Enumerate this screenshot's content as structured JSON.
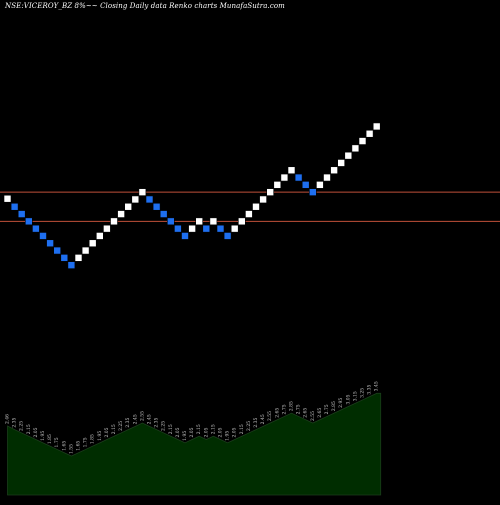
{
  "header": {
    "title": "NSE:VICEROY_BZ 8%~~ Closing Daily data  Renko  charts MunafaSutra.com"
  },
  "colors": {
    "background": "#000000",
    "up_brick": "#ffffff",
    "down_brick": "#1e6ff0",
    "brick_outline": "#000000",
    "level_line": "#c0503a",
    "volume_fill": "#002d00",
    "volume_stroke": "#1b3d1b",
    "value_label": "#cccccc"
  },
  "chart_data": {
    "type": "renko",
    "title": "NSE:VICEROY_BZ 8%~~ Closing Daily data  Renko  charts MunafaSutra.com",
    "brick_size_percent": 8,
    "ylim": [
      1.4,
      3.05
    ],
    "horizontal_lines": [
      2.55,
      2.15
    ],
    "bricks": [
      {
        "dir": "up",
        "value": 2.46
      },
      {
        "dir": "down",
        "value": 2.35
      },
      {
        "dir": "down",
        "value": 2.25
      },
      {
        "dir": "down",
        "value": 2.15
      },
      {
        "dir": "down",
        "value": 2.05
      },
      {
        "dir": "down",
        "value": 1.95
      },
      {
        "dir": "down",
        "value": 1.85
      },
      {
        "dir": "down",
        "value": 1.75
      },
      {
        "dir": "down",
        "value": 1.65
      },
      {
        "dir": "down",
        "value": 1.55
      },
      {
        "dir": "up",
        "value": 1.65
      },
      {
        "dir": "up",
        "value": 1.75
      },
      {
        "dir": "up",
        "value": 1.85
      },
      {
        "dir": "up",
        "value": 1.95
      },
      {
        "dir": "up",
        "value": 2.05
      },
      {
        "dir": "up",
        "value": 2.15
      },
      {
        "dir": "up",
        "value": 2.25
      },
      {
        "dir": "up",
        "value": 2.35
      },
      {
        "dir": "up",
        "value": 2.45
      },
      {
        "dir": "up",
        "value": 2.55
      },
      {
        "dir": "down",
        "value": 2.45
      },
      {
        "dir": "down",
        "value": 2.35
      },
      {
        "dir": "down",
        "value": 2.25
      },
      {
        "dir": "down",
        "value": 2.15
      },
      {
        "dir": "down",
        "value": 2.05
      },
      {
        "dir": "down",
        "value": 1.95
      },
      {
        "dir": "up",
        "value": 2.05
      },
      {
        "dir": "up",
        "value": 2.15
      },
      {
        "dir": "down",
        "value": 2.05
      },
      {
        "dir": "up",
        "value": 2.15
      },
      {
        "dir": "down",
        "value": 2.05
      },
      {
        "dir": "down",
        "value": 1.95
      },
      {
        "dir": "up",
        "value": 2.05
      },
      {
        "dir": "up",
        "value": 2.15
      },
      {
        "dir": "up",
        "value": 2.25
      },
      {
        "dir": "up",
        "value": 2.35
      },
      {
        "dir": "up",
        "value": 2.45
      },
      {
        "dir": "up",
        "value": 2.55
      },
      {
        "dir": "up",
        "value": 2.65
      },
      {
        "dir": "up",
        "value": 2.75
      },
      {
        "dir": "up",
        "value": 2.85
      },
      {
        "dir": "down",
        "value": 2.75
      },
      {
        "dir": "down",
        "value": 2.65
      },
      {
        "dir": "down",
        "value": 2.55
      },
      {
        "dir": "up",
        "value": 2.65
      },
      {
        "dir": "up",
        "value": 2.75
      },
      {
        "dir": "up",
        "value": 2.85
      },
      {
        "dir": "up",
        "value": 2.95
      },
      {
        "dir": "up",
        "value": 3.05
      },
      {
        "dir": "up",
        "value": 3.15
      },
      {
        "dir": "up",
        "value": 3.25
      },
      {
        "dir": "up",
        "value": 3.35
      },
      {
        "dir": "up",
        "value": 3.45
      }
    ],
    "labels": [
      "2.46",
      "2.35",
      "2.25",
      "2.15",
      "2.05",
      "1.95",
      "1.85",
      "1.75",
      "1.65",
      "1.55",
      "1.65",
      "1.75",
      "1.85",
      "1.95",
      "2.05",
      "2.15",
      "2.25",
      "2.35",
      "2.45",
      "2.55",
      "2.45",
      "2.35",
      "2.25",
      "2.15",
      "2.05",
      "1.95",
      "2.05",
      "2.15",
      "2.05",
      "2.15",
      "2.05",
      "1.95",
      "2.05",
      "2.15",
      "2.25",
      "2.35",
      "2.45",
      "2.55",
      "2.65",
      "2.75",
      "2.85",
      "2.75",
      "2.65",
      "2.55",
      "2.65",
      "2.75",
      "2.85",
      "2.95",
      "3.05",
      "3.15",
      "3.25",
      "3.35",
      "3.45"
    ]
  }
}
